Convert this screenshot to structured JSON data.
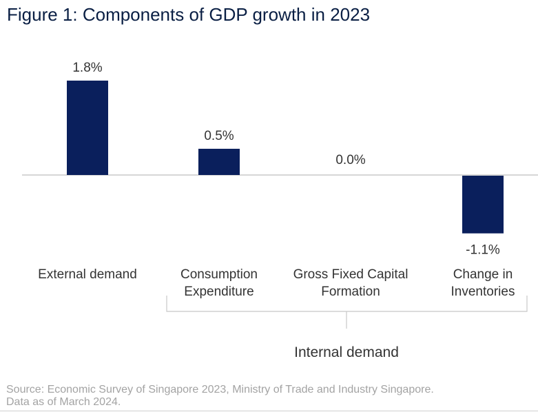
{
  "title": "Figure 1: Components of GDP growth in 2023",
  "colors": {
    "bar": "#0a1f5c",
    "axis": "#c8c8c8",
    "text": "#333333",
    "title": "#0a1f44",
    "source": "#a3a3a3"
  },
  "chart_data": {
    "type": "bar",
    "title": "Figure 1: Components of GDP growth in 2023",
    "categories": [
      [
        "External demand"
      ],
      [
        "Consumption",
        "Expenditure"
      ],
      [
        "Gross Fixed Capital",
        "Formation"
      ],
      [
        "Change in",
        "Inventories"
      ]
    ],
    "values": [
      1.8,
      0.5,
      0.0,
      -1.1
    ],
    "data_labels": [
      "1.8%",
      "0.5%",
      "0.0%",
      "-1.1%"
    ],
    "ylim": [
      -1.1,
      1.8
    ],
    "xlabel": "",
    "ylabel": "",
    "group_label": "Internal demand",
    "group_categories": [
      1,
      2,
      3
    ]
  },
  "source": {
    "line1": "Source: Economic Survey of Singapore 2023, Ministry of Trade and Industry Singapore.",
    "line2": "Data as of March 2024."
  }
}
